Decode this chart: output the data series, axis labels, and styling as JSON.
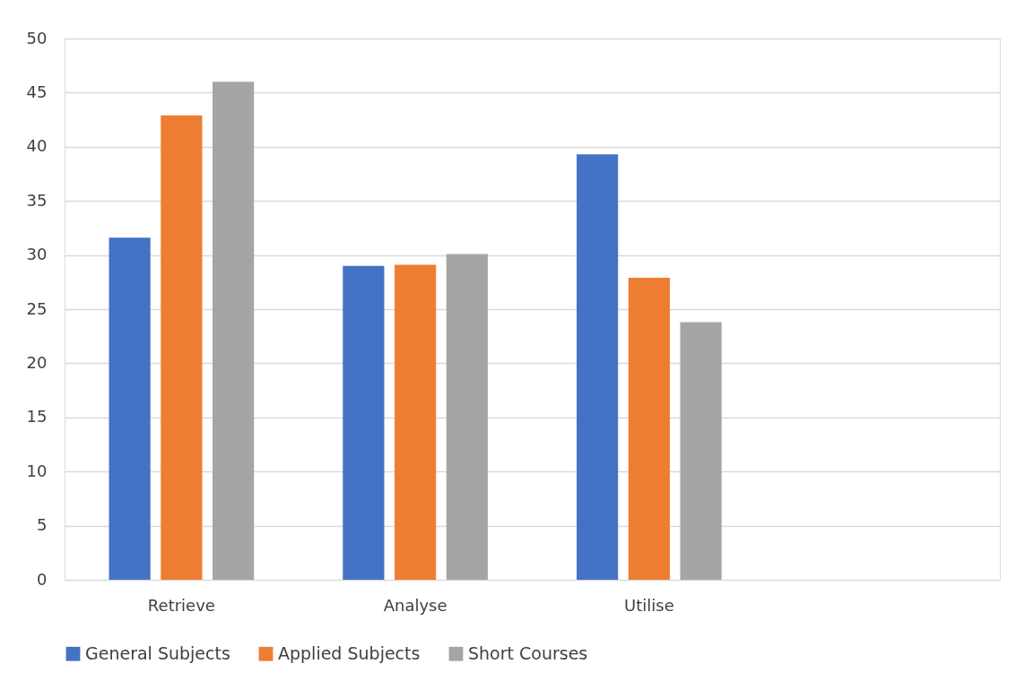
{
  "chart_data": {
    "type": "bar",
    "categories": [
      "Retrieve",
      "Analyse",
      "Utilise",
      null
    ],
    "series": [
      {
        "name": "General Subjects",
        "color": "#4472c4",
        "values": [
          31.6,
          29.0,
          39.3,
          null
        ]
      },
      {
        "name": "Applied Subjects",
        "color": "#ed7d31",
        "values": [
          42.9,
          29.1,
          27.9,
          null
        ]
      },
      {
        "name": "Short Courses",
        "color": "#a5a5a5",
        "values": [
          46.0,
          30.1,
          23.8,
          null
        ]
      }
    ],
    "ylim": [
      0,
      50
    ],
    "yticks": [
      0,
      5,
      10,
      15,
      20,
      25,
      30,
      35,
      40,
      45,
      50
    ],
    "grid": "y",
    "legend": "bottom"
  }
}
